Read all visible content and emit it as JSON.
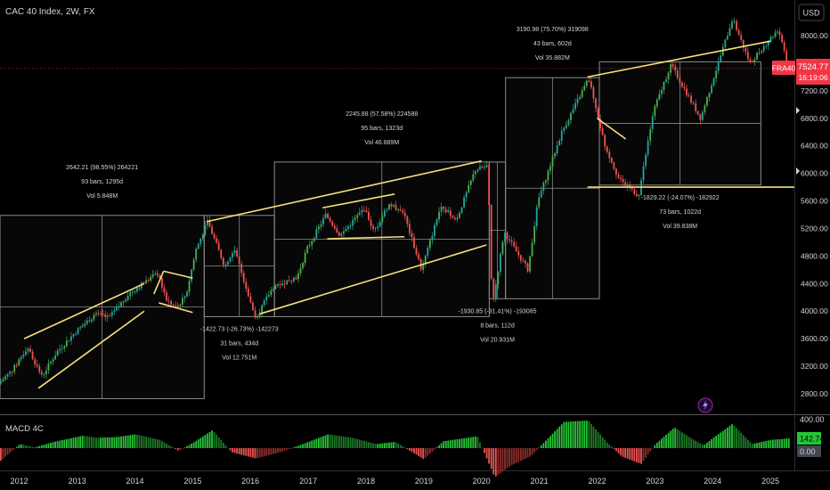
{
  "header": {
    "symbol_title": "CAC 40 Index, 2W, FX",
    "currency_button": "USD"
  },
  "price_scale": {
    "ticks": [
      "8000.00",
      "7600.00",
      "7200.00",
      "6800.00",
      "6400.00",
      "6000.00",
      "5600.00",
      "5200.00",
      "4800.00",
      "4400.00",
      "4000.00",
      "3600.00",
      "3200.00",
      "2800.00"
    ],
    "tick_values": [
      8000,
      7600,
      7200,
      6800,
      6400,
      6000,
      5600,
      5200,
      4800,
      4400,
      4000,
      3600,
      3200,
      2800
    ],
    "symbol_tag": "FRA40",
    "last_price": "7524.77",
    "countdown": "16:19:06"
  },
  "macd_panel": {
    "title": "MACD 4C",
    "scale_top": "400.00",
    "scale_value": "142.74",
    "scale_zero": "0.00"
  },
  "time_axis": {
    "labels": [
      "2012",
      "2013",
      "2014",
      "2015",
      "2016",
      "2017",
      "2018",
      "2019",
      "2020",
      "2021",
      "2022",
      "2023",
      "2024",
      "2025"
    ]
  },
  "annotations": [
    {
      "lines": [
        "2642.21 (98.55%) 264221",
        "93 bars, 1295d",
        "Vol 5.848M"
      ]
    },
    {
      "lines": [
        "-1422.73 (-26.73%) -142273",
        "31 bars, 434d",
        "Vol 12.751M"
      ]
    },
    {
      "lines": [
        "2245.88 (57.58%) 224588",
        "95 bars, 1323d",
        "Vol 46.889M"
      ]
    },
    {
      "lines": [
        "-1930.85 (-31.41%) -193085",
        "8 bars, 112d",
        "Vol 20.931M"
      ]
    },
    {
      "lines": [
        "3190.98 (75.70%) 319098",
        "43 bars, 602d",
        "Vol 35.882M"
      ]
    },
    {
      "lines": [
        "-1829.22 (-24.07%) -182922",
        "73 bars, 1022d",
        "Vol 39.838M"
      ]
    }
  ],
  "colors": {
    "background": "#000000",
    "up_candle": "#26a69a",
    "up_bright": "#4caf50",
    "down_candle": "#ef5350",
    "trendline": "#f7e17a",
    "box_border": "#8c8c8c",
    "price_tag": "#f23645",
    "macd_up": "#26c636",
    "macd_down": "#ef5350",
    "text": "#d1d4dc"
  },
  "chart_data": {
    "type": "candlestick",
    "title": "CAC 40 Index, 2W, FX",
    "xlabel": "",
    "ylabel": "",
    "ylim": [
      2450,
      8300
    ],
    "x_range": [
      "2011-09",
      "2025-06"
    ],
    "log_scale": false,
    "grid": false,
    "price_path": [
      [
        "2011-09-01",
        2950
      ],
      [
        "2011-12-01",
        3150
      ],
      [
        "2012-03-01",
        3480
      ],
      [
        "2012-06-01",
        3050
      ],
      [
        "2012-09-01",
        3400
      ],
      [
        "2013-01-01",
        3700
      ],
      [
        "2013-05-01",
        3950
      ],
      [
        "2013-08-01",
        3900
      ],
      [
        "2013-12-01",
        4250
      ],
      [
        "2014-03-01",
        4400
      ],
      [
        "2014-06-01",
        4550
      ],
      [
        "2014-08-01",
        4150
      ],
      [
        "2014-10-01",
        4050
      ],
      [
        "2014-12-01",
        4250
      ],
      [
        "2015-02-01",
        4900
      ],
      [
        "2015-04-15",
        5300
      ],
      [
        "2015-08-01",
        4650
      ],
      [
        "2015-10-01",
        4900
      ],
      [
        "2016-02-11",
        3900
      ],
      [
        "2016-06-01",
        4350
      ],
      [
        "2016-11-01",
        4500
      ],
      [
        "2017-01-01",
        4900
      ],
      [
        "2017-05-01",
        5400
      ],
      [
        "2017-08-01",
        5100
      ],
      [
        "2018-01-01",
        5500
      ],
      [
        "2018-03-01",
        5150
      ],
      [
        "2018-06-01",
        5550
      ],
      [
        "2018-09-01",
        5450
      ],
      [
        "2018-12-27",
        4600
      ],
      [
        "2019-05-01",
        5550
      ],
      [
        "2019-08-01",
        5300
      ],
      [
        "2019-12-01",
        6050
      ],
      [
        "2020-02-19",
        6110
      ],
      [
        "2020-03-18",
        4050
      ],
      [
        "2020-06-01",
        5150
      ],
      [
        "2020-10-30",
        4600
      ],
      [
        "2021-01-01",
        5600
      ],
      [
        "2021-06-01",
        6600
      ],
      [
        "2021-11-17",
        7380
      ],
      [
        "2022-03-01",
        6400
      ],
      [
        "2022-06-01",
        5900
      ],
      [
        "2022-09-29",
        5680
      ],
      [
        "2023-01-01",
        6900
      ],
      [
        "2023-04-21",
        7580
      ],
      [
        "2023-10-26",
        6800
      ],
      [
        "2024-02-01",
        7500
      ],
      [
        "2024-05-15",
        8250
      ],
      [
        "2024-09-01",
        7600
      ],
      [
        "2025-03-01",
        8100
      ],
      [
        "2025-05-01",
        7524.77
      ]
    ],
    "macd": {
      "name": "MACD 4C",
      "last_value": 142.74,
      "ylim": [
        -250,
        400
      ],
      "path": [
        [
          "2011-09-01",
          -180
        ],
        [
          "2012-01-01",
          60
        ],
        [
          "2012-04-01",
          10
        ],
        [
          "2012-08-01",
          90
        ],
        [
          "2013-02-01",
          180
        ],
        [
          "2013-05-01",
          150
        ],
        [
          "2013-09-01",
          160
        ],
        [
          "2014-01-01",
          200
        ],
        [
          "2014-06-01",
          120
        ],
        [
          "2014-10-01",
          -40
        ],
        [
          "2015-01-01",
          80
        ],
        [
          "2015-05-01",
          260
        ],
        [
          "2015-09-01",
          -60
        ],
        [
          "2016-02-01",
          -150
        ],
        [
          "2016-07-01",
          -60
        ],
        [
          "2016-11-01",
          40
        ],
        [
          "2017-05-01",
          200
        ],
        [
          "2017-10-01",
          150
        ],
        [
          "2018-03-01",
          60
        ],
        [
          "2018-07-01",
          90
        ],
        [
          "2018-12-27",
          -160
        ],
        [
          "2019-05-01",
          100
        ],
        [
          "2019-12-01",
          170
        ],
        [
          "2020-03-20",
          -420
        ],
        [
          "2020-07-01",
          -250
        ],
        [
          "2020-11-01",
          -120
        ],
        [
          "2021-06-01",
          380
        ],
        [
          "2021-11-01",
          400
        ],
        [
          "2022-03-01",
          80
        ],
        [
          "2022-06-01",
          -120
        ],
        [
          "2022-10-01",
          -230
        ],
        [
          "2023-01-01",
          60
        ],
        [
          "2023-05-01",
          300
        ],
        [
          "2023-08-01",
          160
        ],
        [
          "2023-11-01",
          40
        ],
        [
          "2024-01-01",
          150
        ],
        [
          "2024-05-01",
          350
        ],
        [
          "2024-09-01",
          60
        ],
        [
          "2025-01-01",
          120
        ],
        [
          "2025-05-01",
          142.74
        ]
      ]
    },
    "measure_boxes": [
      {
        "from": "2011-09-01",
        "to": "2015-03-15",
        "low": 2730,
        "high": 5390,
        "change": 2642.21,
        "percent": 98.55,
        "bars": 93,
        "days": 1295,
        "volume": "5.848M"
      },
      {
        "from": "2015-03-15",
        "to": "2016-06-01",
        "low": 3920,
        "high": 5390,
        "change": -1422.73,
        "percent": -26.73,
        "bars": 31,
        "days": 434,
        "volume": "12.751M"
      },
      {
        "from": "2016-06-01",
        "to": "2020-02-19",
        "low": 3920,
        "high": 6165,
        "change": 2245.88,
        "percent": 57.58,
        "bars": 95,
        "days": 1323,
        "volume": "46.889M"
      },
      {
        "from": "2020-02-19",
        "to": "2020-06-01",
        "low": 4180,
        "high": 6165,
        "change": -1930.85,
        "percent": -31.41,
        "bars": 8,
        "days": 112,
        "volume": "20.931M"
      },
      {
        "from": "2020-06-01",
        "to": "2022-01-15",
        "low": 4180,
        "high": 7390,
        "change": 3190.98,
        "percent": 75.7,
        "bars": 43,
        "days": 602,
        "volume": "35.882M"
      },
      {
        "from": "2022-01-15",
        "to": "2024-11-01",
        "low": 5830,
        "high": 7620,
        "change": -1829.22,
        "percent": -24.07,
        "bars": 73,
        "days": 1022,
        "volume": "39.838M"
      }
    ],
    "trendlines": [
      {
        "name": "2012-2014 channel upper",
        "points": [
          [
            "2012-02-01",
            3600
          ],
          [
            "2014-03-01",
            4400
          ]
        ]
      },
      {
        "name": "2012-2014 channel lower",
        "points": [
          [
            "2012-05-01",
            2880
          ],
          [
            "2014-03-01",
            4000
          ]
        ]
      },
      {
        "name": "2014 wedge upper a",
        "points": [
          [
            "2014-05-01",
            4250
          ],
          [
            "2014-07-01",
            4580
          ]
        ]
      },
      {
        "name": "2014 wedge upper b",
        "points": [
          [
            "2014-07-01",
            4580
          ],
          [
            "2015-01-01",
            4480
          ]
        ]
      },
      {
        "name": "2014 wedge lower",
        "points": [
          [
            "2014-06-01",
            4120
          ],
          [
            "2015-01-01",
            3980
          ]
        ]
      },
      {
        "name": "2015-2020 channel upper",
        "points": [
          [
            "2015-04-01",
            5300
          ],
          [
            "2020-01-01",
            6180
          ]
        ]
      },
      {
        "name": "2015-2020 channel lower",
        "points": [
          [
            "2016-03-01",
            3960
          ],
          [
            "2020-02-01",
            4960
          ]
        ]
      },
      {
        "name": "2017-2018 range upper",
        "points": [
          [
            "2017-04-01",
            5500
          ],
          [
            "2018-07-01",
            5700
          ]
        ]
      },
      {
        "name": "2017-2018 range lower",
        "points": [
          [
            "2017-05-01",
            5050
          ],
          [
            "2018-09-01",
            5080
          ]
        ]
      },
      {
        "name": "2022 flag upper",
        "points": [
          [
            "2022-01-01",
            6800
          ],
          [
            "2022-07-01",
            6500
          ]
        ]
      },
      {
        "name": "2022-2025 upper",
        "points": [
          [
            "2021-11-01",
            7400
          ],
          [
            "2025-01-01",
            7920
          ]
        ]
      },
      {
        "name": "2022-2025 support",
        "points": [
          [
            "2021-11-01",
            5800
          ],
          [
            "2025-06-01",
            5800
          ]
        ]
      }
    ]
  }
}
